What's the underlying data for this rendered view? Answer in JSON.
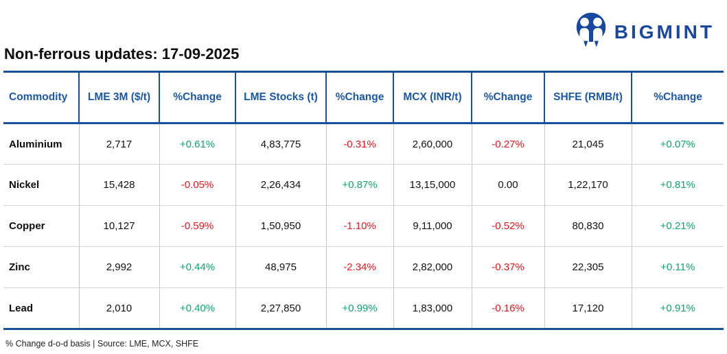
{
  "brand": {
    "name": "BIGMINT",
    "logo_icon": "bigmint-people-m-icon",
    "blue": "#17479e"
  },
  "title": "Non-ferrous updates: 17-09-2025",
  "table": {
    "columns": [
      {
        "label": "Commodity",
        "align": "left"
      },
      {
        "label": "LME 3M ($/t)",
        "align": "center"
      },
      {
        "label": "%Change",
        "align": "center"
      },
      {
        "label": "LME Stocks (t)",
        "align": "center"
      },
      {
        "label": "%Change",
        "align": "center"
      },
      {
        "label": "MCX (INR/t)",
        "align": "center"
      },
      {
        "label": "%Change",
        "align": "center"
      },
      {
        "label": "SHFE (RMB/t)",
        "align": "center"
      },
      {
        "label": "%Change",
        "align": "center"
      }
    ],
    "rows": [
      {
        "commodity": "Aluminium",
        "cells": [
          {
            "text": "2,717",
            "tone": "neutral"
          },
          {
            "text": "+0.61%",
            "tone": "pos"
          },
          {
            "text": "4,83,775",
            "tone": "neutral"
          },
          {
            "text": "-0.31%",
            "tone": "neg"
          },
          {
            "text": "2,60,000",
            "tone": "neutral"
          },
          {
            "text": "-0.27%",
            "tone": "neg"
          },
          {
            "text": "21,045",
            "tone": "neutral"
          },
          {
            "text": "+0.07%",
            "tone": "pos"
          }
        ]
      },
      {
        "commodity": "Nickel",
        "cells": [
          {
            "text": "15,428",
            "tone": "neutral"
          },
          {
            "text": "-0.05%",
            "tone": "neg"
          },
          {
            "text": "2,26,434",
            "tone": "neutral"
          },
          {
            "text": "+0.87%",
            "tone": "pos"
          },
          {
            "text": "13,15,000",
            "tone": "neutral"
          },
          {
            "text": "0.00",
            "tone": "neutral"
          },
          {
            "text": "1,22,170",
            "tone": "neutral"
          },
          {
            "text": "+0.81%",
            "tone": "pos"
          }
        ]
      },
      {
        "commodity": "Copper",
        "cells": [
          {
            "text": "10,127",
            "tone": "neutral"
          },
          {
            "text": "-0.59%",
            "tone": "neg"
          },
          {
            "text": "1,50,950",
            "tone": "neutral"
          },
          {
            "text": "-1.10%",
            "tone": "neg"
          },
          {
            "text": "9,11,000",
            "tone": "neutral"
          },
          {
            "text": "-0.52%",
            "tone": "neg"
          },
          {
            "text": "80,830",
            "tone": "neutral"
          },
          {
            "text": "+0.21%",
            "tone": "pos"
          }
        ]
      },
      {
        "commodity": "Zinc",
        "cells": [
          {
            "text": "2,992",
            "tone": "neutral"
          },
          {
            "text": "+0.44%",
            "tone": "pos"
          },
          {
            "text": "48,975",
            "tone": "neutral"
          },
          {
            "text": "-2.34%",
            "tone": "neg"
          },
          {
            "text": "2,82,000",
            "tone": "neutral"
          },
          {
            "text": "-0.37%",
            "tone": "neg"
          },
          {
            "text": "22,305",
            "tone": "neutral"
          },
          {
            "text": "+0.11%",
            "tone": "pos"
          }
        ]
      },
      {
        "commodity": "Lead",
        "cells": [
          {
            "text": "2,010",
            "tone": "neutral"
          },
          {
            "text": "+0.40%",
            "tone": "pos"
          },
          {
            "text": "2,27,850",
            "tone": "neutral"
          },
          {
            "text": "+0.99%",
            "tone": "pos"
          },
          {
            "text": "1,83,000",
            "tone": "neutral"
          },
          {
            "text": "-0.16%",
            "tone": "neg"
          },
          {
            "text": "17,120",
            "tone": "neutral"
          },
          {
            "text": "+0.91%",
            "tone": "pos"
          }
        ]
      }
    ]
  },
  "footnote": "% Change d-o-d basis | Source: LME, MCX, SHFE",
  "colors": {
    "positive": "#0ca86d",
    "negative": "#f5121b",
    "table_blue": "#15509e",
    "header_text_blue": "#1a57a6"
  }
}
